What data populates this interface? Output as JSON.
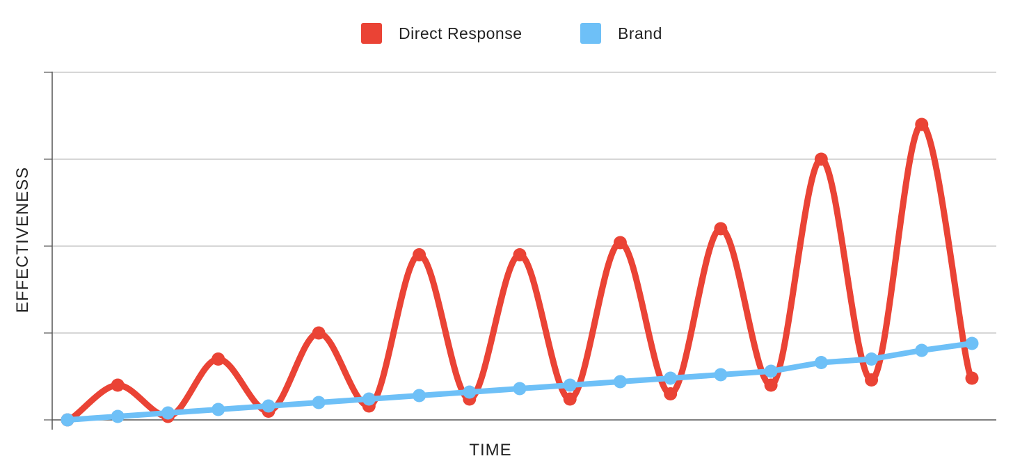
{
  "chart_data": {
    "type": "line",
    "xlabel": "TIME",
    "ylabel": "EFFECTIVENESS",
    "x": [
      1,
      2,
      3,
      4,
      5,
      6,
      7,
      8,
      9,
      10,
      11,
      12,
      13,
      14,
      15,
      16,
      17,
      18,
      19
    ],
    "ylim": [
      0,
      20
    ],
    "y_gridlines": [
      0,
      5,
      10,
      15,
      20
    ],
    "y_tick_labels_visible": false,
    "x_tick_labels_visible": false,
    "grid": true,
    "legend_position": "top-center",
    "series": [
      {
        "name": "Direct Response",
        "color": "#ea4335",
        "line_style": "smooth",
        "values": [
          0.0,
          2.0,
          0.2,
          3.5,
          0.5,
          5.0,
          0.8,
          9.5,
          1.2,
          9.5,
          1.2,
          10.2,
          1.5,
          11.0,
          2.0,
          15.0,
          2.3,
          17.0,
          2.4
        ]
      },
      {
        "name": "Brand",
        "color": "#6ec0f7",
        "line_style": "straight",
        "values": [
          0.0,
          0.2,
          0.4,
          0.6,
          0.8,
          1.0,
          1.2,
          1.4,
          1.6,
          1.8,
          2.0,
          2.2,
          2.4,
          2.6,
          2.8,
          3.3,
          3.5,
          4.0,
          4.4
        ]
      }
    ]
  }
}
